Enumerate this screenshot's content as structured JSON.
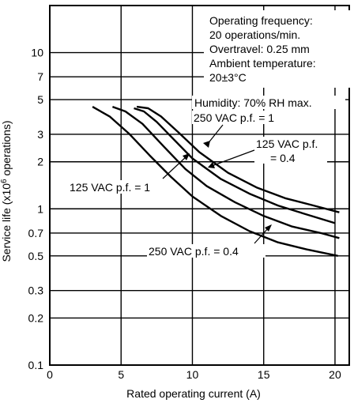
{
  "chart_data": {
    "type": "line",
    "xlabel": "Rated operating current (A)",
    "ylabel_main": "Service life (x10",
    "ylabel_sup": "6",
    "ylabel_tail": " operations)",
    "xlim": [
      0,
      21
    ],
    "ylim": [
      0.1,
      20
    ],
    "y_scale": "log",
    "grid": true,
    "x_ticks": [
      {
        "value": 0,
        "label": "0"
      },
      {
        "value": 5,
        "label": "5"
      },
      {
        "value": 10,
        "label": "10"
      },
      {
        "value": 15,
        "label": "15"
      },
      {
        "value": 20,
        "label": "20"
      }
    ],
    "y_ticks": [
      {
        "value": 10,
        "label": "10"
      },
      {
        "value": 7,
        "label": "7"
      },
      {
        "value": 5,
        "label": "5"
      },
      {
        "value": 3,
        "label": "3"
      },
      {
        "value": 2,
        "label": "2"
      },
      {
        "value": 1,
        "label": "1"
      },
      {
        "value": 0.7,
        "label": "0.7"
      },
      {
        "value": 0.5,
        "label": "0.5"
      },
      {
        "value": 0.3,
        "label": "0.3"
      },
      {
        "value": 0.2,
        "label": "0.2"
      },
      {
        "value": 0.1,
        "label": "0.1"
      }
    ],
    "conditions": [
      "Operating frequency:",
      "20 operations/min.",
      "Overtravel: 0.25 mm",
      "Ambient temperature:",
      "20±3°C",
      "Humidity: 70% RH max."
    ],
    "series": [
      {
        "name": "250 VAC p.f. = 1",
        "x": [
          5.9,
          6.6,
          7.5,
          8.5,
          10,
          12,
          14,
          16,
          18,
          20
        ],
        "y": [
          4.4,
          4.2,
          3.6,
          2.9,
          2.1,
          1.55,
          1.25,
          1.05,
          0.92,
          0.81
        ]
      },
      {
        "name": "125 VAC p.f. = 0.4",
        "x": [
          6.1,
          6.9,
          7.8,
          9,
          10.5,
          12.5,
          14.5,
          16.5,
          18.5,
          20.3
        ],
        "y": [
          4.5,
          4.4,
          3.9,
          3.1,
          2.3,
          1.7,
          1.37,
          1.17,
          1.05,
          0.95
        ]
      },
      {
        "name": "125 VAC p.f. = 1",
        "x": [
          4.4,
          5.3,
          6.5,
          8,
          9.5,
          11,
          13,
          15,
          17,
          19,
          20.3
        ],
        "y": [
          4.5,
          4.2,
          3.5,
          2.5,
          1.8,
          1.4,
          1.1,
          0.9,
          0.77,
          0.7,
          0.65
        ]
      },
      {
        "name": "250 VAC p.f. = 0.4",
        "x": [
          3,
          4.2,
          5.6,
          7,
          8.5,
          10,
          12,
          14,
          16,
          18,
          20.2
        ],
        "y": [
          4.5,
          3.9,
          3.0,
          2.2,
          1.6,
          1.2,
          0.9,
          0.72,
          0.61,
          0.55,
          0.5
        ]
      }
    ]
  }
}
